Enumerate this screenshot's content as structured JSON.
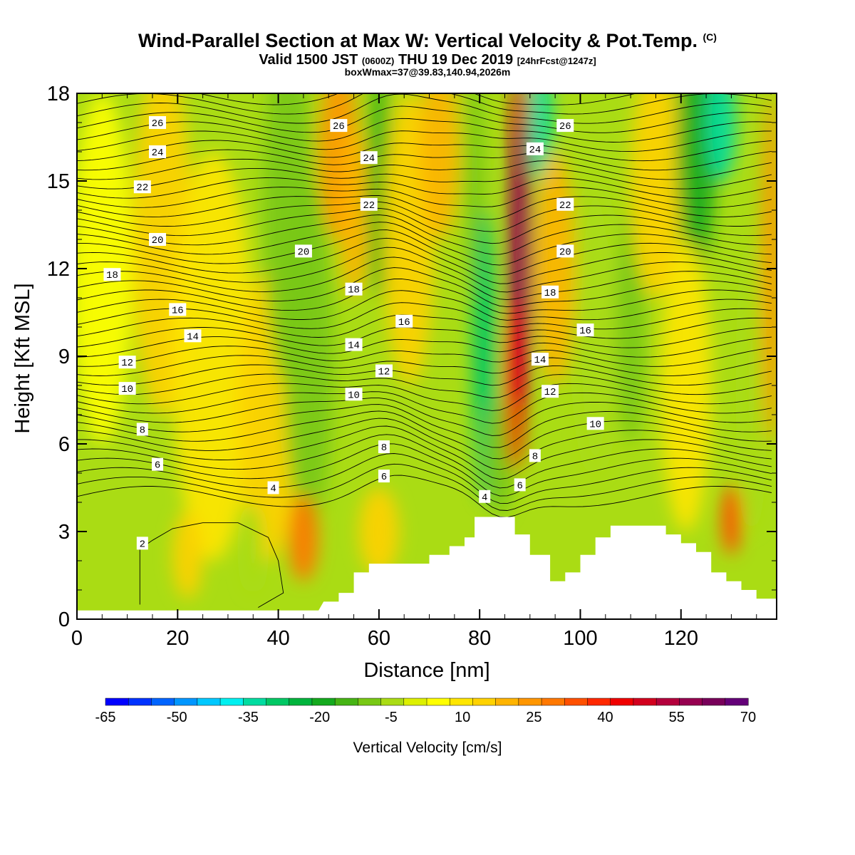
{
  "header": {
    "title": "Wind-Parallel Section at Max W: Vertical Velocity & Pot.Temp.",
    "title_mark": "(C)",
    "valid_prefix": "Valid 1500 JST",
    "valid_utc": "(0600Z)",
    "valid_date": "THU 19 Dec 2019",
    "forecast": "[24hrFcst@1247z]",
    "box_info": "boxWmax=37@39.83,140.94,2026m"
  },
  "chart_data": {
    "type": "heatmap",
    "xlabel": "Distance [nm]",
    "ylabel": "Height [Kft MSL]",
    "xlim": [
      0,
      139
    ],
    "ylim": [
      0,
      18
    ],
    "x_ticks": [
      0,
      20,
      40,
      60,
      80,
      100,
      120
    ],
    "y_ticks": [
      0,
      3,
      6,
      9,
      12,
      15,
      18
    ],
    "grid": false,
    "colorbar": {
      "label": "Vertical Velocity [cm/s]",
      "tick_labels": [
        "-65",
        "-50",
        "-35",
        "-20",
        "-5",
        "10",
        "25",
        "40",
        "55",
        "70"
      ],
      "colors": [
        "#0000ff",
        "#0032ff",
        "#0064ff",
        "#0096ff",
        "#00c8ff",
        "#00f0f0",
        "#00dca0",
        "#00c864",
        "#00b43c",
        "#14aa1e",
        "#46b414",
        "#78c814",
        "#aadc14",
        "#ddf000",
        "#ffff00",
        "#ffe600",
        "#ffd200",
        "#ffb400",
        "#ff9600",
        "#ff7800",
        "#ff5000",
        "#ff2800",
        "#f00000",
        "#d2001e",
        "#b4003c",
        "#960050",
        "#78005a",
        "#640078"
      ]
    },
    "terrain": [
      [
        0,
        0.3
      ],
      [
        48,
        0.3
      ],
      [
        49,
        0.6
      ],
      [
        52,
        0.6
      ],
      [
        52,
        0.9
      ],
      [
        55,
        0.9
      ],
      [
        55,
        1.6
      ],
      [
        58,
        1.6
      ],
      [
        58,
        1.9
      ],
      [
        70,
        1.9
      ],
      [
        70,
        2.2
      ],
      [
        74,
        2.2
      ],
      [
        74,
        2.5
      ],
      [
        77,
        2.5
      ],
      [
        77,
        2.8
      ],
      [
        79,
        2.8
      ],
      [
        79,
        3.5
      ],
      [
        87,
        3.5
      ],
      [
        87,
        2.9
      ],
      [
        90,
        2.9
      ],
      [
        90,
        2.2
      ],
      [
        94,
        2.2
      ],
      [
        94,
        1.3
      ],
      [
        97,
        1.3
      ],
      [
        97,
        1.6
      ],
      [
        100,
        1.6
      ],
      [
        100,
        2.2
      ],
      [
        103,
        2.2
      ],
      [
        103,
        2.8
      ],
      [
        106,
        2.8
      ],
      [
        106,
        3.2
      ],
      [
        117,
        3.2
      ],
      [
        117,
        2.9
      ],
      [
        120,
        2.9
      ],
      [
        120,
        2.6
      ],
      [
        123,
        2.6
      ],
      [
        123,
        2.3
      ],
      [
        126,
        2.3
      ],
      [
        126,
        1.6
      ],
      [
        129,
        1.6
      ],
      [
        129,
        1.3
      ],
      [
        132,
        1.3
      ],
      [
        132,
        1.0
      ],
      [
        135,
        1.0
      ],
      [
        135,
        0.7
      ],
      [
        139,
        0.7
      ]
    ],
    "theta_labels": [
      {
        "value": "26",
        "x": 16,
        "y": 17.0
      },
      {
        "value": "26",
        "x": 52,
        "y": 16.9
      },
      {
        "value": "26",
        "x": 97,
        "y": 16.9
      },
      {
        "value": "24",
        "x": 16,
        "y": 16.0
      },
      {
        "value": "24",
        "x": 58,
        "y": 15.8
      },
      {
        "value": "24",
        "x": 91,
        "y": 16.1
      },
      {
        "value": "22",
        "x": 13,
        "y": 14.8
      },
      {
        "value": "22",
        "x": 58,
        "y": 14.2
      },
      {
        "value": "22",
        "x": 97,
        "y": 14.2
      },
      {
        "value": "20",
        "x": 16,
        "y": 13.0
      },
      {
        "value": "20",
        "x": 45,
        "y": 12.6
      },
      {
        "value": "20",
        "x": 97,
        "y": 12.6
      },
      {
        "value": "18",
        "x": 7,
        "y": 11.8
      },
      {
        "value": "18",
        "x": 55,
        "y": 11.3
      },
      {
        "value": "18",
        "x": 94,
        "y": 11.2
      },
      {
        "value": "16",
        "x": 20,
        "y": 10.6
      },
      {
        "value": "16",
        "x": 65,
        "y": 10.2
      },
      {
        "value": "16",
        "x": 101,
        "y": 9.9
      },
      {
        "value": "14",
        "x": 23,
        "y": 9.7
      },
      {
        "value": "14",
        "x": 55,
        "y": 9.4
      },
      {
        "value": "14",
        "x": 92,
        "y": 8.9
      },
      {
        "value": "12",
        "x": 10,
        "y": 8.8
      },
      {
        "value": "12",
        "x": 61,
        "y": 8.5
      },
      {
        "value": "12",
        "x": 94,
        "y": 7.8
      },
      {
        "value": "10",
        "x": 10,
        "y": 7.9
      },
      {
        "value": "10",
        "x": 55,
        "y": 7.7
      },
      {
        "value": "10",
        "x": 103,
        "y": 6.7
      },
      {
        "value": "8",
        "x": 13,
        "y": 6.5
      },
      {
        "value": "8",
        "x": 61,
        "y": 5.9
      },
      {
        "value": "8",
        "x": 91,
        "y": 5.6
      },
      {
        "value": "6",
        "x": 16,
        "y": 5.3
      },
      {
        "value": "6",
        "x": 61,
        "y": 4.9
      },
      {
        "value": "6",
        "x": 88,
        "y": 4.6
      },
      {
        "value": "4",
        "x": 39,
        "y": 4.5
      },
      {
        "value": "4",
        "x": 81,
        "y": 4.2
      },
      {
        "value": "2",
        "x": 13,
        "y": 2.6
      }
    ],
    "velocity_field": [
      {
        "x": 5,
        "y": 12,
        "rx": 6,
        "ry": 6,
        "w": 0
      },
      {
        "x": 17,
        "y": 13,
        "rx": 6,
        "ry": 6,
        "w": 12
      },
      {
        "x": 27,
        "y": 9,
        "rx": 8,
        "ry": 7,
        "w": 8
      },
      {
        "x": 38,
        "y": 7,
        "rx": 6,
        "ry": 5,
        "w": 10
      },
      {
        "x": 42,
        "y": 14,
        "rx": 5,
        "ry": 6,
        "w": -12
      },
      {
        "x": 46,
        "y": 9,
        "rx": 5,
        "ry": 6,
        "w": -12
      },
      {
        "x": 52,
        "y": 16,
        "rx": 4,
        "ry": 3,
        "w": 20
      },
      {
        "x": 55,
        "y": 14,
        "rx": 3,
        "ry": 3,
        "w": 15
      },
      {
        "x": 60,
        "y": 15,
        "rx": 2.5,
        "ry": 4,
        "w": -20
      },
      {
        "x": 66,
        "y": 13,
        "rx": 5,
        "ry": 5,
        "w": 12
      },
      {
        "x": 72,
        "y": 16,
        "rx": 4,
        "ry": 3,
        "w": 18
      },
      {
        "x": 79,
        "y": 15,
        "rx": 2,
        "ry": 4,
        "w": -15
      },
      {
        "x": 81,
        "y": 9,
        "rx": 2.5,
        "ry": 5,
        "w": -35
      },
      {
        "x": 84,
        "y": 5.5,
        "rx": 3,
        "ry": 2,
        "w": -15
      },
      {
        "x": 88,
        "y": 16.5,
        "rx": 2,
        "ry": 2,
        "w": 45
      },
      {
        "x": 88,
        "y": 12,
        "rx": 2.5,
        "ry": 5,
        "w": 55
      },
      {
        "x": 87,
        "y": 8,
        "rx": 2,
        "ry": 3,
        "w": 40
      },
      {
        "x": 92,
        "y": 17,
        "rx": 2.5,
        "ry": 2,
        "w": -40
      },
      {
        "x": 95,
        "y": 12,
        "rx": 4,
        "ry": 4,
        "w": 15
      },
      {
        "x": 103,
        "y": 10,
        "rx": 4,
        "ry": 5,
        "w": -10
      },
      {
        "x": 110,
        "y": 10,
        "rx": 3,
        "ry": 4,
        "w": -12
      },
      {
        "x": 115,
        "y": 15,
        "rx": 5,
        "ry": 4,
        "w": 12
      },
      {
        "x": 123,
        "y": 16,
        "rx": 4,
        "ry": 4,
        "w": -25
      },
      {
        "x": 128,
        "y": 17,
        "rx": 3,
        "ry": 2,
        "w": -40
      },
      {
        "x": 121,
        "y": 8,
        "rx": 5,
        "ry": 5,
        "w": 8
      },
      {
        "x": 130,
        "y": 3.4,
        "rx": 2,
        "ry": 1.2,
        "w": 30
      },
      {
        "x": 134,
        "y": 8,
        "rx": 2,
        "ry": 5,
        "w": -8
      },
      {
        "x": 138,
        "y": 12,
        "rx": 2,
        "ry": 6,
        "w": 20
      },
      {
        "x": 45,
        "y": 2.8,
        "rx": 3,
        "ry": 1.5,
        "w": 25
      },
      {
        "x": 35,
        "y": 2.4,
        "rx": 2,
        "ry": 1.5,
        "w": -10
      },
      {
        "x": 22,
        "y": 2.2,
        "rx": 3,
        "ry": 1.5,
        "w": 10
      },
      {
        "x": 60,
        "y": 3,
        "rx": 4,
        "ry": 1.5,
        "w": 12
      }
    ]
  }
}
